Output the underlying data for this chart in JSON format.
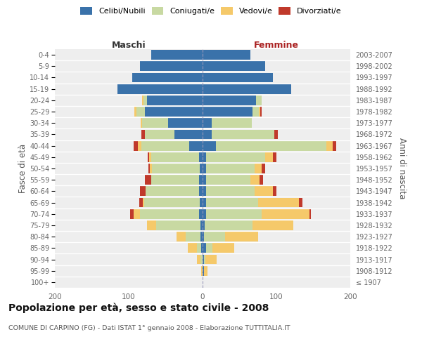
{
  "age_groups": [
    "100+",
    "95-99",
    "90-94",
    "85-89",
    "80-84",
    "75-79",
    "70-74",
    "65-69",
    "60-64",
    "55-59",
    "50-54",
    "45-49",
    "40-44",
    "35-39",
    "30-34",
    "25-29",
    "20-24",
    "15-19",
    "10-14",
    "5-9",
    "0-4"
  ],
  "birth_years": [
    "≤ 1907",
    "1908-1912",
    "1913-1917",
    "1918-1922",
    "1923-1927",
    "1928-1932",
    "1933-1937",
    "1938-1942",
    "1943-1947",
    "1948-1952",
    "1953-1957",
    "1958-1962",
    "1963-1967",
    "1968-1972",
    "1973-1977",
    "1978-1982",
    "1983-1987",
    "1988-1992",
    "1993-1997",
    "1998-2002",
    "2003-2007"
  ],
  "male_celibi": [
    0,
    0,
    0,
    2,
    3,
    3,
    5,
    4,
    5,
    5,
    4,
    5,
    18,
    38,
    47,
    78,
    75,
    115,
    95,
    85,
    70
  ],
  "male_coniugati": [
    0,
    0,
    3,
    6,
    20,
    60,
    80,
    75,
    72,
    65,
    65,
    65,
    65,
    40,
    35,
    12,
    5,
    0,
    0,
    0,
    0
  ],
  "male_vedovi": [
    0,
    2,
    5,
    12,
    12,
    12,
    8,
    2,
    0,
    0,
    2,
    2,
    5,
    0,
    2,
    2,
    2,
    0,
    0,
    0,
    0
  ],
  "male_divorziati": [
    0,
    0,
    0,
    0,
    0,
    0,
    5,
    5,
    8,
    8,
    2,
    2,
    5,
    5,
    0,
    0,
    0,
    0,
    0,
    0,
    0
  ],
  "female_nubili": [
    0,
    2,
    2,
    5,
    2,
    3,
    5,
    5,
    5,
    5,
    5,
    5,
    18,
    12,
    12,
    68,
    72,
    120,
    95,
    85,
    65
  ],
  "female_coniugate": [
    0,
    0,
    2,
    8,
    28,
    65,
    75,
    70,
    65,
    60,
    65,
    80,
    150,
    85,
    55,
    8,
    8,
    0,
    0,
    0,
    0
  ],
  "female_vedove": [
    0,
    5,
    15,
    30,
    45,
    55,
    65,
    55,
    25,
    12,
    10,
    10,
    8,
    0,
    0,
    2,
    0,
    0,
    0,
    0,
    0
  ],
  "female_divorziate": [
    0,
    0,
    0,
    0,
    0,
    0,
    2,
    5,
    5,
    5,
    5,
    5,
    5,
    5,
    0,
    2,
    0,
    0,
    0,
    0,
    0
  ],
  "color_celibi": "#3a72aa",
  "color_coniugati": "#c8d9a2",
  "color_vedovi": "#f5c96a",
  "color_divorziati": "#c0392b",
  "title": "Popolazione per età, sesso e stato civile - 2008",
  "subtitle": "COMUNE DI CARPINO (FG) - Dati ISTAT 1° gennaio 2008 - Elaborazione TUTTITALIA.IT",
  "legend_labels": [
    "Celibi/Nubili",
    "Coniugati/e",
    "Vedovi/e",
    "Divorziati/e"
  ],
  "label_maschi": "Maschi",
  "label_femmine": "Femmine",
  "label_fasce": "Fasce di età",
  "label_anni": "Anni di nascita",
  "xlim": 200
}
